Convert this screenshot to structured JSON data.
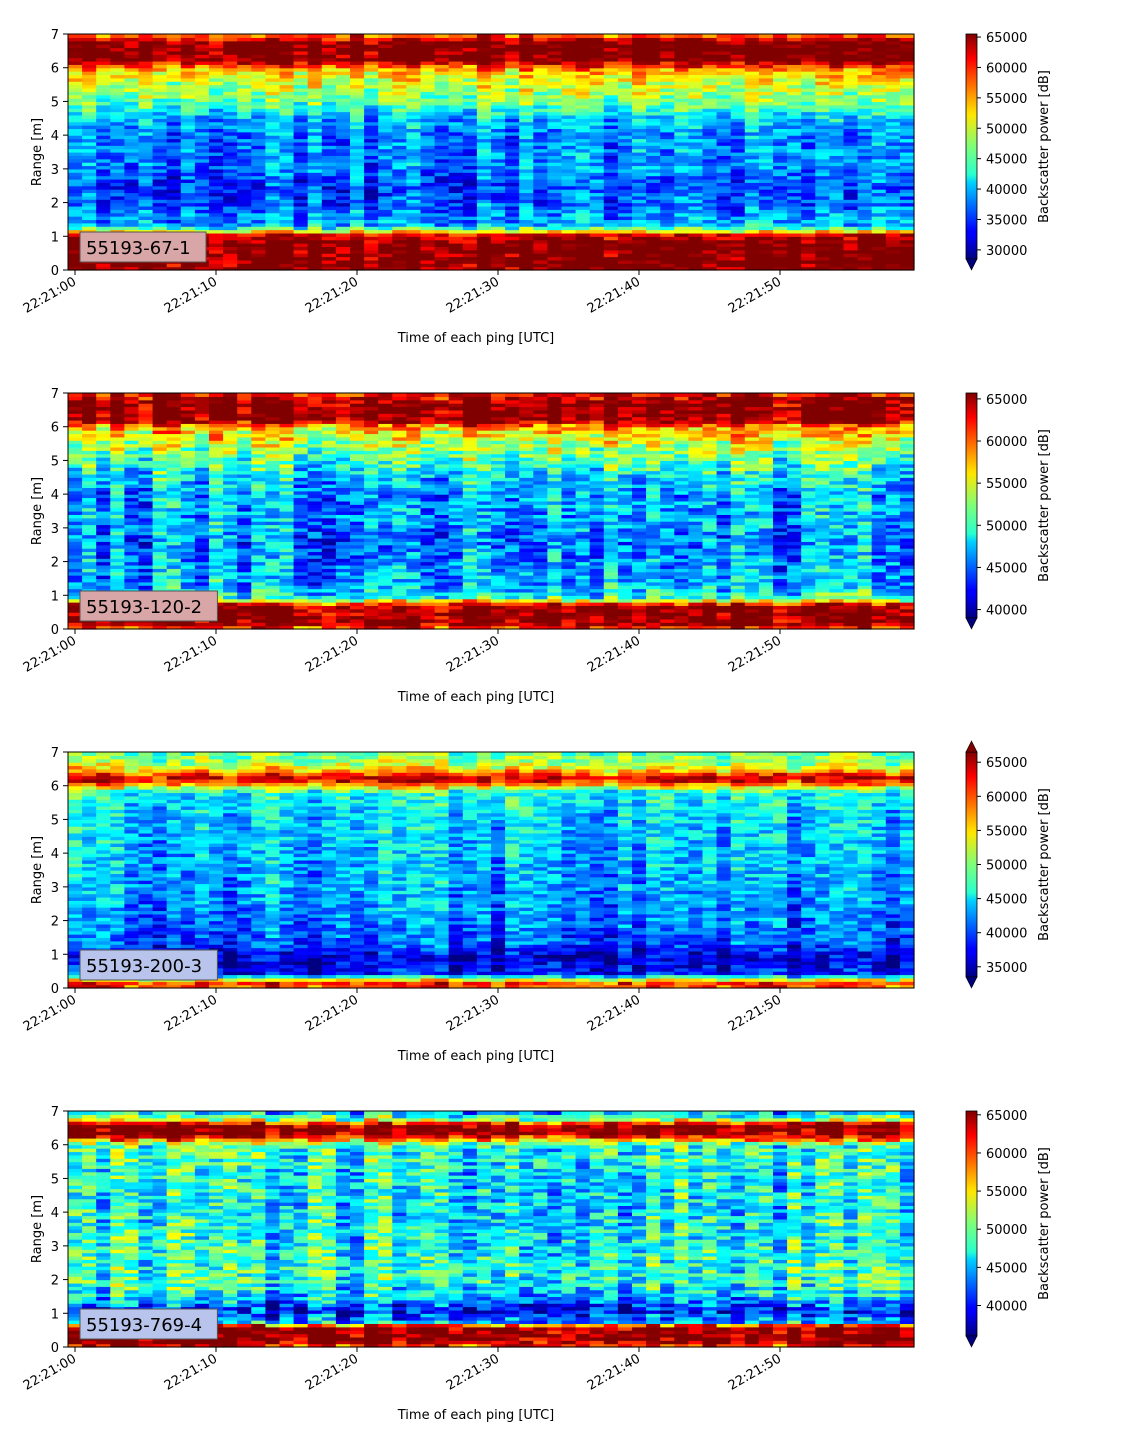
{
  "chart_data": [
    {
      "type": "heatmap",
      "panel_label": "55193-67-1",
      "panel_label_bg": "#d9a6a8",
      "xlabel": "Time of each ping [UTC]",
      "ylabel": "Range [m]",
      "xticks": [
        "22:21:00",
        "22:21:10",
        "22:21:20",
        "22:21:30",
        "22:21:40",
        "22:21:50"
      ],
      "yticks": [
        "0",
        "1",
        "2",
        "3",
        "4",
        "5",
        "6",
        "7"
      ],
      "ylim": [
        0,
        7
      ],
      "x_range_seconds": [
        0,
        60
      ],
      "colorbar": {
        "label": "Backscatter power [dB]",
        "ticks": [
          "30000",
          "35000",
          "40000",
          "45000",
          "50000",
          "55000",
          "60000",
          "65000"
        ],
        "range": [
          28500,
          65500
        ],
        "extend": "min",
        "colormap": "jet"
      },
      "profile": [
        {
          "range": 0.0,
          "value": 65000
        },
        {
          "range": 0.25,
          "value": 66000
        },
        {
          "range": 0.8,
          "value": 66000
        },
        {
          "range": 1.05,
          "value": 62000
        },
        {
          "range": 1.15,
          "value": 52000
        },
        {
          "range": 1.3,
          "value": 40000
        },
        {
          "range": 2.0,
          "value": 36000
        },
        {
          "range": 2.5,
          "value": 35000
        },
        {
          "range": 3.0,
          "value": 37500
        },
        {
          "range": 3.5,
          "value": 38000
        },
        {
          "range": 4.0,
          "value": 37500
        },
        {
          "range": 4.5,
          "value": 40000
        },
        {
          "range": 5.0,
          "value": 46000
        },
        {
          "range": 5.5,
          "value": 50000
        },
        {
          "range": 5.9,
          "value": 53000
        },
        {
          "range": 6.1,
          "value": 60000
        },
        {
          "range": 6.25,
          "value": 66000
        },
        {
          "range": 6.75,
          "value": 66000
        },
        {
          "range": 6.9,
          "value": 60000
        },
        {
          "range": 7.0,
          "value": 56000
        }
      ],
      "noise": 5000
    },
    {
      "type": "heatmap",
      "panel_label": "55193-120-2",
      "panel_label_bg": "#d9a6a8",
      "xlabel": "Time of each ping [UTC]",
      "ylabel": "Range [m]",
      "xticks": [
        "22:21:00",
        "22:21:10",
        "22:21:20",
        "22:21:30",
        "22:21:40",
        "22:21:50"
      ],
      "yticks": [
        "0",
        "1",
        "2",
        "3",
        "4",
        "5",
        "6",
        "7"
      ],
      "ylim": [
        0,
        7
      ],
      "x_range_seconds": [
        0,
        60
      ],
      "colorbar": {
        "label": "Backscatter power [dB]",
        "ticks": [
          "40000",
          "45000",
          "50000",
          "55000",
          "60000",
          "65000"
        ],
        "range": [
          39000,
          65700
        ],
        "extend": "min",
        "colormap": "jet"
      },
      "profile": [
        {
          "range": 0.0,
          "value": 60000
        },
        {
          "range": 0.2,
          "value": 66000
        },
        {
          "range": 0.7,
          "value": 66000
        },
        {
          "range": 0.8,
          "value": 58000
        },
        {
          "range": 0.95,
          "value": 50000
        },
        {
          "range": 1.3,
          "value": 47000
        },
        {
          "range": 2.0,
          "value": 46500
        },
        {
          "range": 2.5,
          "value": 45500
        },
        {
          "range": 3.0,
          "value": 46500
        },
        {
          "range": 3.5,
          "value": 47000
        },
        {
          "range": 4.0,
          "value": 46500
        },
        {
          "range": 4.5,
          "value": 48500
        },
        {
          "range": 5.0,
          "value": 51000
        },
        {
          "range": 5.5,
          "value": 54000
        },
        {
          "range": 6.0,
          "value": 58000
        },
        {
          "range": 6.2,
          "value": 66000
        },
        {
          "range": 6.75,
          "value": 66000
        },
        {
          "range": 7.0,
          "value": 62000
        }
      ],
      "noise": 4500
    },
    {
      "type": "heatmap",
      "panel_label": "55193-200-3",
      "panel_label_bg": "#b8c4ec",
      "xlabel": "Time of each ping [UTC]",
      "ylabel": "Range [m]",
      "xticks": [
        "22:21:00",
        "22:21:10",
        "22:21:20",
        "22:21:30",
        "22:21:40",
        "22:21:50"
      ],
      "yticks": [
        "0",
        "1",
        "2",
        "3",
        "4",
        "5",
        "6",
        "7"
      ],
      "ylim": [
        0,
        7
      ],
      "x_range_seconds": [
        0,
        60
      ],
      "colorbar": {
        "label": "Backscatter power [dB]",
        "ticks": [
          "35000",
          "40000",
          "45000",
          "50000",
          "55000",
          "60000",
          "65000"
        ],
        "range": [
          33500,
          66500
        ],
        "extend": "both",
        "colormap": "jet"
      },
      "profile": [
        {
          "range": 0.0,
          "value": 56000
        },
        {
          "range": 0.1,
          "value": 64000
        },
        {
          "range": 0.2,
          "value": 58000
        },
        {
          "range": 0.3,
          "value": 49000
        },
        {
          "range": 0.45,
          "value": 38000
        },
        {
          "range": 1.0,
          "value": 36000
        },
        {
          "range": 1.3,
          "value": 40000
        },
        {
          "range": 2.0,
          "value": 41500
        },
        {
          "range": 3.0,
          "value": 43000
        },
        {
          "range": 4.0,
          "value": 43500
        },
        {
          "range": 5.0,
          "value": 44500
        },
        {
          "range": 5.8,
          "value": 46000
        },
        {
          "range": 6.0,
          "value": 55000
        },
        {
          "range": 6.2,
          "value": 65000
        },
        {
          "range": 6.4,
          "value": 58000
        },
        {
          "range": 6.6,
          "value": 52000
        },
        {
          "range": 7.0,
          "value": 49000
        }
      ],
      "noise": 4500
    },
    {
      "type": "heatmap",
      "panel_label": "55193-769-4",
      "panel_label_bg": "#b8c4ec",
      "xlabel": "Time of each ping [UTC]",
      "ylabel": "Range [m]",
      "xticks": [
        "22:21:00",
        "22:21:10",
        "22:21:20",
        "22:21:30",
        "22:21:40",
        "22:21:50"
      ],
      "yticks": [
        "0",
        "1",
        "2",
        "3",
        "4",
        "5",
        "6",
        "7"
      ],
      "ylim": [
        0,
        7
      ],
      "x_range_seconds": [
        0,
        60
      ],
      "colorbar": {
        "label": "Backscatter power [dB]",
        "ticks": [
          "40000",
          "45000",
          "50000",
          "55000",
          "60000",
          "65000"
        ],
        "range": [
          36000,
          65500
        ],
        "extend": "min",
        "colormap": "jet"
      },
      "profile": [
        {
          "range": 0.0,
          "value": 60000
        },
        {
          "range": 0.2,
          "value": 66000
        },
        {
          "range": 0.6,
          "value": 66000
        },
        {
          "range": 0.75,
          "value": 45000
        },
        {
          "range": 1.1,
          "value": 39500
        },
        {
          "range": 1.5,
          "value": 46000
        },
        {
          "range": 2.0,
          "value": 48500
        },
        {
          "range": 3.0,
          "value": 47500
        },
        {
          "range": 4.0,
          "value": 47000
        },
        {
          "range": 5.0,
          "value": 47000
        },
        {
          "range": 6.0,
          "value": 48500
        },
        {
          "range": 6.2,
          "value": 60000
        },
        {
          "range": 6.35,
          "value": 66000
        },
        {
          "range": 6.6,
          "value": 66000
        },
        {
          "range": 6.75,
          "value": 52000
        },
        {
          "range": 7.0,
          "value": 44000
        }
      ],
      "noise": 5500
    }
  ]
}
